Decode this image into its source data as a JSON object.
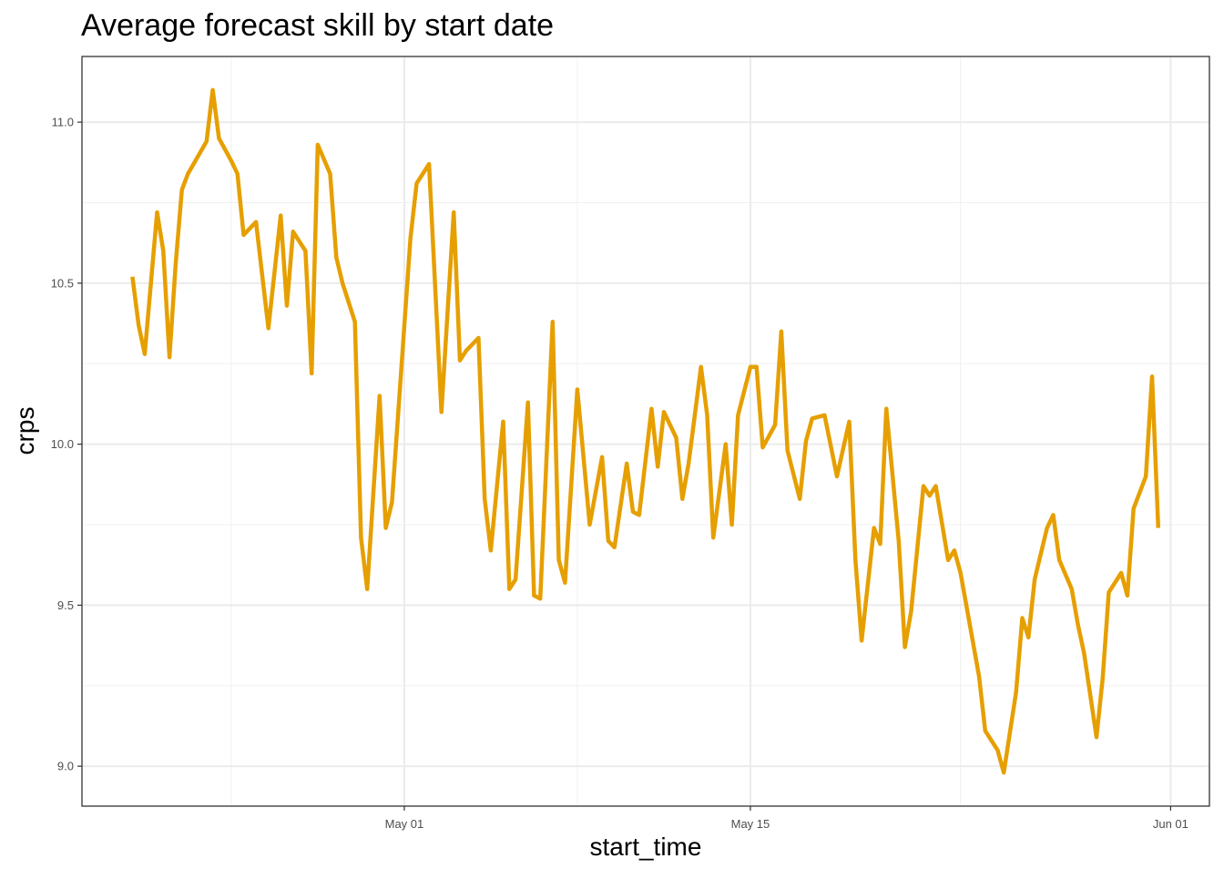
{
  "chart_data": {
    "type": "line",
    "title": "Average forecast skill by start date",
    "x_label": "start_time",
    "y_label": "crps",
    "x": [
      -10,
      -9.75,
      -9.5,
      -9,
      -8.75,
      -8.5,
      -8.25,
      -8,
      -7.75,
      -7,
      -6.75,
      -6.5,
      -6,
      -5.75,
      -5.5,
      -5,
      -4.5,
      -4,
      -3.75,
      -3.5,
      -3,
      -2.75,
      -2.5,
      -2,
      -1.75,
      -1.5,
      -1,
      -0.75,
      -0.5,
      0,
      0.25,
      0.5,
      1.25,
      1.5,
      2,
      2.5,
      3,
      3.25,
      3.5,
      4,
      4.25,
      4.5,
      5,
      5.25,
      5.5,
      6,
      6.25,
      6.5,
      7,
      7.25,
      7.5,
      8,
      8.5,
      9,
      9.25,
      9.5,
      10,
      10.25,
      10.5,
      11,
      11.25,
      11.5,
      12,
      12.25,
      12.5,
      13,
      13.25,
      13.5,
      14,
      14.25,
      14.5,
      15,
      15.25,
      15.5,
      16,
      16.25,
      16.5,
      17,
      17.25,
      17.5,
      18,
      18.5,
      19,
      19.25,
      19.5,
      20,
      20.25,
      20.5,
      21,
      21.25,
      21.5,
      22,
      22.25,
      22.5,
      23,
      23.25,
      23.5,
      24.25,
      24.5,
      25,
      25.25,
      25.75,
      26,
      26.25,
      26.5,
      27,
      27.25,
      27.5,
      28,
      28.25,
      28.5,
      29,
      29.25,
      29.5,
      30,
      30.25,
      30.5,
      31,
      31.25,
      31.5
    ],
    "series": [
      {
        "name": "crps",
        "color": "#E69F00",
        "values": [
          10.52,
          10.37,
          10.28,
          10.72,
          10.6,
          10.27,
          10.56,
          10.79,
          10.84,
          10.94,
          11.1,
          10.95,
          10.88,
          10.84,
          10.65,
          10.69,
          10.36,
          10.71,
          10.43,
          10.66,
          10.6,
          10.22,
          10.93,
          10.84,
          10.58,
          10.5,
          10.38,
          9.71,
          9.55,
          10.15,
          9.74,
          9.82,
          10.64,
          10.81,
          10.87,
          10.1,
          10.72,
          10.26,
          10.29,
          10.33,
          9.83,
          9.67,
          10.07,
          9.55,
          9.58,
          10.13,
          9.53,
          9.52,
          10.38,
          9.64,
          9.57,
          10.17,
          9.75,
          9.96,
          9.7,
          9.68,
          9.94,
          9.79,
          9.78,
          10.11,
          9.93,
          10.1,
          10.02,
          9.83,
          9.94,
          10.24,
          10.09,
          9.71,
          10.0,
          9.75,
          10.09,
          10.24,
          10.24,
          9.99,
          10.06,
          10.35,
          9.98,
          9.83,
          10.01,
          10.08,
          10.09,
          9.9,
          10.07,
          9.64,
          9.39,
          9.74,
          9.69,
          10.11,
          9.7,
          9.37,
          9.48,
          9.87,
          9.84,
          9.87,
          9.64,
          9.67,
          9.6,
          9.28,
          9.11,
          9.05,
          8.98,
          9.23,
          9.46,
          9.4,
          9.58,
          9.74,
          9.78,
          9.64,
          9.55,
          9.44,
          9.35,
          9.09,
          9.27,
          9.54,
          9.6,
          9.53,
          9.8,
          9.9,
          10.21,
          9.74
        ]
      }
    ],
    "xlim": [
      -12.04,
      33.57
    ],
    "xticks": [
      {
        "value": 1,
        "label": "May 01"
      },
      {
        "value": 15,
        "label": "May 15"
      },
      {
        "value": 32,
        "label": "Jun 01"
      }
    ],
    "ylim": [
      8.876,
      11.204
    ],
    "yticks": [
      {
        "value": 9,
        "label": "9.0"
      },
      9.5,
      {
        "value": 10,
        "label": "10.0"
      },
      10.5,
      {
        "value": 11,
        "label": "11.0"
      }
    ],
    "grid": true
  }
}
